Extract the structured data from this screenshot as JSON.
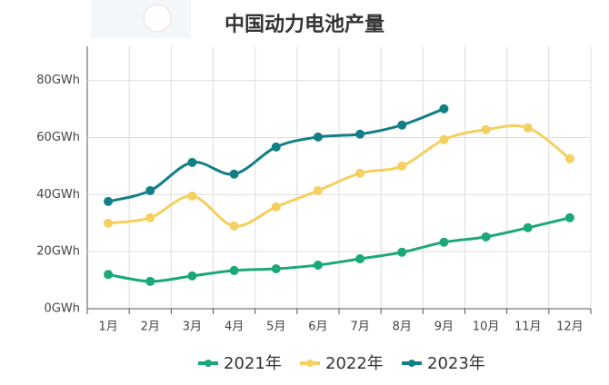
{
  "chart_data": {
    "type": "line",
    "title": "中国动力电池产量",
    "categories": [
      "1月",
      "2月",
      "3月",
      "4月",
      "5月",
      "6月",
      "7月",
      "8月",
      "9月",
      "10月",
      "11月",
      "12月"
    ],
    "series": [
      {
        "name": "2021年",
        "color": "#1aa87a",
        "values": [
          12,
          9.6,
          11.5,
          13.4,
          14,
          15.3,
          17.5,
          19.8,
          23.3,
          25.2,
          28.4,
          31.9
        ]
      },
      {
        "name": "2022年",
        "color": "#f5d060",
        "values": [
          30,
          31.9,
          39.5,
          29,
          35.7,
          41.4,
          47.5,
          50,
          59.3,
          62.8,
          63.4,
          52.6
        ]
      },
      {
        "name": "2023年",
        "color": "#117f86",
        "values": [
          37.6,
          41.4,
          51.3,
          47.2,
          56.7,
          60.2,
          61.2,
          64.4,
          70.1,
          null,
          null,
          null
        ]
      }
    ],
    "ylim": [
      0,
      92
    ],
    "yticks": [
      {
        "value": 0,
        "label": "0GWh"
      },
      {
        "value": 20,
        "label": "20GWh"
      },
      {
        "value": 40,
        "label": "40GWh"
      },
      {
        "value": 60,
        "label": "60GWh"
      },
      {
        "value": 80,
        "label": "80GWh"
      }
    ],
    "grid": true
  }
}
